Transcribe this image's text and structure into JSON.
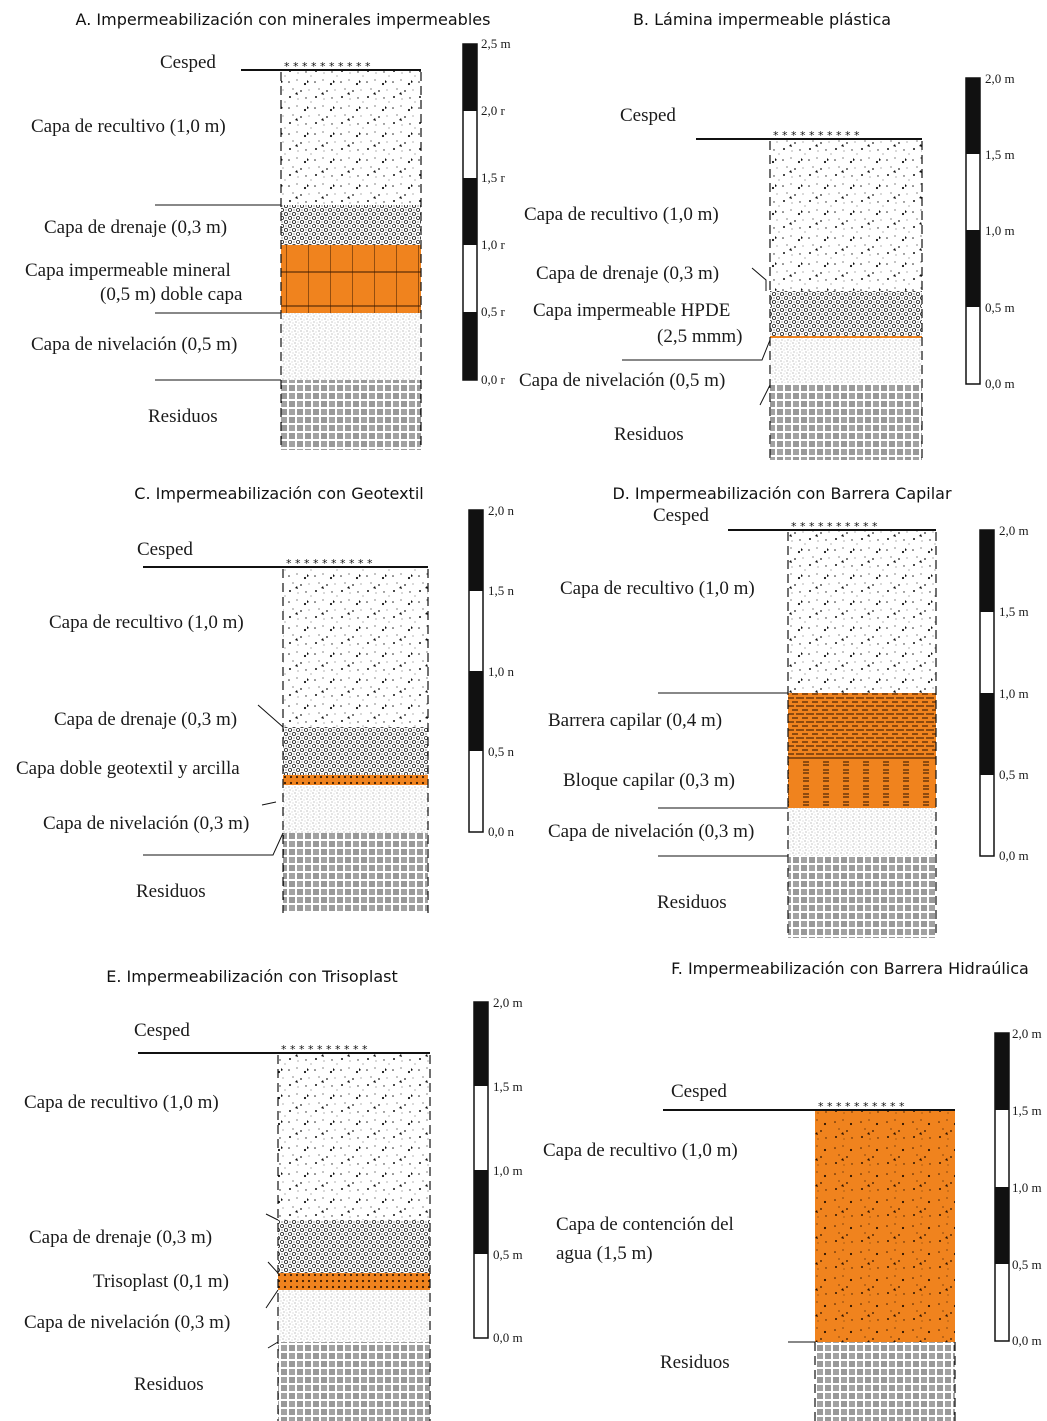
{
  "colors": {
    "orange": "#f0831e",
    "ink": "#111111",
    "background": "#ffffff"
  },
  "panels": {
    "A": {
      "title": "A. Impermeabilización con minerales impermeables",
      "grass_label": "Cesped",
      "layers": [
        "Capa de recultivo (1,0 m)",
        "Capa de drenaje (0,3 m)",
        "Capa impermeable mineral",
        "(0,5 m) doble capa",
        "Capa de nivelación (0,5 m)",
        "Residuos"
      ],
      "scale_ticks": [
        "2,5 m",
        "2,0 r",
        "1,5 r",
        "1,0 r",
        "0,5 r",
        "0,0 r"
      ]
    },
    "B": {
      "title": "B. Lámina impermeable plástica",
      "grass_label": "Cesped",
      "layers": [
        "Capa de recultivo (1,0 m)",
        "Capa de drenaje (0,3 m)",
        "Capa impermeable HPDE",
        "(2,5 mmm)",
        "Capa de nivelación (0,5 m)",
        "Residuos"
      ],
      "scale_ticks": [
        "2,0 m",
        "1,5 m",
        "1,0 m",
        "0,5 m",
        "0,0 m"
      ]
    },
    "C": {
      "title": "C. Impermeabilización con Geotextil",
      "grass_label": "Cesped",
      "layers": [
        "Capa de recultivo (1,0 m)",
        "Capa de drenaje (0,3 m)",
        "Capa doble geotextil y arcilla",
        "Capa de nivelación (0,3 m)",
        "Residuos"
      ],
      "scale_ticks": [
        "2,0 n",
        "1,5 n",
        "1,0 n",
        "0,5 n",
        "0,0 n"
      ]
    },
    "D": {
      "title": "D. Impermeabilización con Barrera Capilar",
      "grass_label": "Cesped",
      "layers": [
        "Capa de recultivo (1,0 m)",
        "Barrera capilar  (0,4 m)",
        "Bloque capilar (0,3 m)",
        "Capa de nivelación (0,3 m)",
        "Residuos"
      ],
      "scale_ticks": [
        "2,0 m",
        "1,5 m",
        "1,0 m",
        "0,5 m",
        "0,0 m"
      ]
    },
    "E": {
      "title": "E. Impermeabilización con Trisoplast",
      "grass_label": "Cesped",
      "layers": [
        "Capa de recultivo (1,0 m)",
        "Capa de drenaje (0,3 m)",
        "Trisoplast (0,1 m)",
        "Capa de nivelación (0,3 m)",
        "Residuos"
      ],
      "scale_ticks": [
        "2,0 m",
        "1,5 m",
        "1,0 m",
        "0,5 m",
        "0,0 m"
      ]
    },
    "F": {
      "title": "F. Impermeabilización con Barrera Hidraúlica",
      "grass_label": "Cesped",
      "layers": [
        "Capa de recultivo (1,0 m)",
        "Capa de contención del",
        "agua (1,5 m)",
        "Residuos"
      ],
      "scale_ticks": [
        "2,0 m",
        "1,5 m",
        "1,0 m",
        "0,5 m",
        "0,0 m"
      ]
    }
  }
}
